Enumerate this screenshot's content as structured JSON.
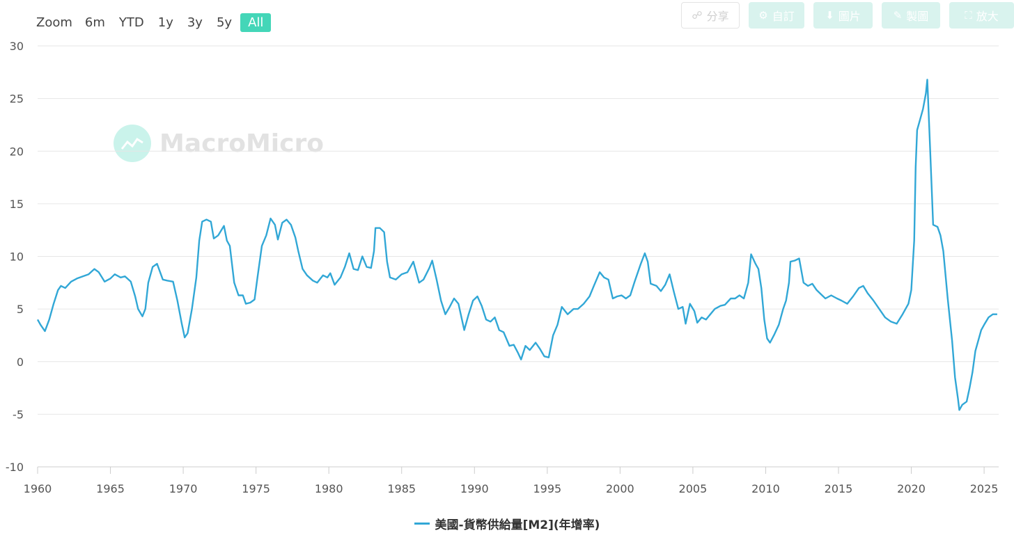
{
  "zoom": {
    "label": "Zoom",
    "buttons": [
      "6m",
      "YTD",
      "1y",
      "3y",
      "5y",
      "All"
    ],
    "active": "All"
  },
  "toolbar": {
    "share": "分享",
    "customize": "自訂",
    "image": "圖片",
    "draw": "製圖",
    "enlarge": "放大"
  },
  "watermark": "MacroMicro",
  "colors": {
    "series": "#31a7d6",
    "accent": "#44d6b8",
    "grid": "#e6e6e6"
  },
  "chart_data": {
    "type": "line",
    "x_ticks": [
      1960,
      1965,
      1970,
      1975,
      1980,
      1985,
      1990,
      1995,
      2000,
      2005,
      2010,
      2015,
      2020,
      2025
    ],
    "y_ticks": [
      30,
      25,
      20,
      15,
      10,
      5,
      0,
      -5,
      -10
    ],
    "xlim": [
      1960,
      2026
    ],
    "ylim": [
      -10,
      30
    ],
    "grid": true,
    "legend_position": "bottom-center",
    "series": [
      {
        "name": "美國-貨幣供給量[M2](年增率)",
        "points": [
          [
            1960.0,
            4.0
          ],
          [
            1960.2,
            3.5
          ],
          [
            1960.5,
            2.9
          ],
          [
            1960.8,
            4.0
          ],
          [
            1961.1,
            5.5
          ],
          [
            1961.4,
            6.8
          ],
          [
            1961.6,
            7.2
          ],
          [
            1961.9,
            7.0
          ],
          [
            1962.3,
            7.6
          ],
          [
            1962.7,
            7.9
          ],
          [
            1963.1,
            8.1
          ],
          [
            1963.5,
            8.3
          ],
          [
            1963.9,
            8.8
          ],
          [
            1964.2,
            8.5
          ],
          [
            1964.6,
            7.6
          ],
          [
            1965.0,
            7.9
          ],
          [
            1965.3,
            8.3
          ],
          [
            1965.7,
            8.0
          ],
          [
            1966.0,
            8.1
          ],
          [
            1966.4,
            7.6
          ],
          [
            1966.7,
            6.2
          ],
          [
            1966.9,
            5.0
          ],
          [
            1967.2,
            4.3
          ],
          [
            1967.4,
            5.0
          ],
          [
            1967.6,
            7.5
          ],
          [
            1967.9,
            9.0
          ],
          [
            1968.2,
            9.3
          ],
          [
            1968.6,
            7.8
          ],
          [
            1968.9,
            7.7
          ],
          [
            1969.3,
            7.6
          ],
          [
            1969.6,
            5.8
          ],
          [
            1969.9,
            3.6
          ],
          [
            1970.1,
            2.3
          ],
          [
            1970.3,
            2.7
          ],
          [
            1970.6,
            5.0
          ],
          [
            1970.9,
            8.0
          ],
          [
            1971.1,
            11.5
          ],
          [
            1971.3,
            13.3
          ],
          [
            1971.6,
            13.5
          ],
          [
            1971.9,
            13.3
          ],
          [
            1972.1,
            11.7
          ],
          [
            1972.4,
            12.0
          ],
          [
            1972.8,
            12.9
          ],
          [
            1973.0,
            11.5
          ],
          [
            1973.2,
            11.0
          ],
          [
            1973.5,
            7.5
          ],
          [
            1973.8,
            6.3
          ],
          [
            1974.1,
            6.3
          ],
          [
            1974.3,
            5.5
          ],
          [
            1974.6,
            5.6
          ],
          [
            1974.9,
            5.9
          ],
          [
            1975.1,
            8.0
          ],
          [
            1975.4,
            11.0
          ],
          [
            1975.7,
            12.0
          ],
          [
            1976.0,
            13.6
          ],
          [
            1976.3,
            13.0
          ],
          [
            1976.5,
            11.6
          ],
          [
            1976.8,
            13.2
          ],
          [
            1977.1,
            13.5
          ],
          [
            1977.4,
            13.0
          ],
          [
            1977.7,
            11.8
          ],
          [
            1977.9,
            10.5
          ],
          [
            1978.2,
            8.8
          ],
          [
            1978.5,
            8.2
          ],
          [
            1978.9,
            7.7
          ],
          [
            1979.2,
            7.5
          ],
          [
            1979.6,
            8.2
          ],
          [
            1979.9,
            8.0
          ],
          [
            1980.1,
            8.4
          ],
          [
            1980.4,
            7.3
          ],
          [
            1980.8,
            8.0
          ],
          [
            1981.1,
            9.0
          ],
          [
            1981.4,
            10.3
          ],
          [
            1981.7,
            8.8
          ],
          [
            1982.0,
            8.7
          ],
          [
            1982.3,
            10.0
          ],
          [
            1982.6,
            9.0
          ],
          [
            1982.9,
            8.9
          ],
          [
            1983.1,
            10.5
          ],
          [
            1983.2,
            12.7
          ],
          [
            1983.5,
            12.7
          ],
          [
            1983.8,
            12.3
          ],
          [
            1984.0,
            9.5
          ],
          [
            1984.2,
            8.0
          ],
          [
            1984.6,
            7.8
          ],
          [
            1985.0,
            8.3
          ],
          [
            1985.4,
            8.5
          ],
          [
            1985.8,
            9.5
          ],
          [
            1986.2,
            7.5
          ],
          [
            1986.5,
            7.8
          ],
          [
            1986.9,
            8.9
          ],
          [
            1987.1,
            9.6
          ],
          [
            1987.4,
            7.8
          ],
          [
            1987.7,
            5.8
          ],
          [
            1988.0,
            4.5
          ],
          [
            1988.3,
            5.2
          ],
          [
            1988.6,
            6.0
          ],
          [
            1988.9,
            5.5
          ],
          [
            1989.3,
            3.0
          ],
          [
            1989.6,
            4.5
          ],
          [
            1989.9,
            5.8
          ],
          [
            1990.2,
            6.2
          ],
          [
            1990.5,
            5.3
          ],
          [
            1990.8,
            4.0
          ],
          [
            1991.1,
            3.8
          ],
          [
            1991.4,
            4.2
          ],
          [
            1991.7,
            3.0
          ],
          [
            1992.0,
            2.8
          ],
          [
            1992.4,
            1.5
          ],
          [
            1992.7,
            1.6
          ],
          [
            1993.0,
            0.8
          ],
          [
            1993.2,
            0.2
          ],
          [
            1993.5,
            1.5
          ],
          [
            1993.8,
            1.1
          ],
          [
            1994.2,
            1.8
          ],
          [
            1994.5,
            1.2
          ],
          [
            1994.8,
            0.5
          ],
          [
            1995.1,
            0.4
          ],
          [
            1995.4,
            2.5
          ],
          [
            1995.7,
            3.5
          ],
          [
            1996.0,
            5.2
          ],
          [
            1996.4,
            4.5
          ],
          [
            1996.8,
            5.0
          ],
          [
            1997.1,
            5.0
          ],
          [
            1997.5,
            5.5
          ],
          [
            1997.9,
            6.2
          ],
          [
            1998.2,
            7.2
          ],
          [
            1998.6,
            8.5
          ],
          [
            1998.9,
            8.0
          ],
          [
            1999.2,
            7.8
          ],
          [
            1999.5,
            6.0
          ],
          [
            1999.8,
            6.2
          ],
          [
            2000.1,
            6.3
          ],
          [
            2000.4,
            6.0
          ],
          [
            2000.7,
            6.3
          ],
          [
            2001.0,
            7.6
          ],
          [
            2001.4,
            9.2
          ],
          [
            2001.7,
            10.3
          ],
          [
            2001.9,
            9.5
          ],
          [
            2002.1,
            7.4
          ],
          [
            2002.5,
            7.2
          ],
          [
            2002.8,
            6.7
          ],
          [
            2003.1,
            7.3
          ],
          [
            2003.4,
            8.3
          ],
          [
            2003.7,
            6.6
          ],
          [
            2004.0,
            5.0
          ],
          [
            2004.3,
            5.2
          ],
          [
            2004.5,
            3.6
          ],
          [
            2004.8,
            5.5
          ],
          [
            2005.1,
            4.8
          ],
          [
            2005.3,
            3.7
          ],
          [
            2005.6,
            4.2
          ],
          [
            2005.9,
            4.0
          ],
          [
            2006.2,
            4.5
          ],
          [
            2006.5,
            5.0
          ],
          [
            2006.9,
            5.3
          ],
          [
            2007.2,
            5.4
          ],
          [
            2007.6,
            6.0
          ],
          [
            2007.9,
            6.0
          ],
          [
            2008.2,
            6.3
          ],
          [
            2008.5,
            6.0
          ],
          [
            2008.8,
            7.5
          ],
          [
            2009.0,
            10.2
          ],
          [
            2009.3,
            9.3
          ],
          [
            2009.5,
            8.8
          ],
          [
            2009.7,
            7.0
          ],
          [
            2009.9,
            4.0
          ],
          [
            2010.1,
            2.2
          ],
          [
            2010.3,
            1.8
          ],
          [
            2010.6,
            2.6
          ],
          [
            2010.9,
            3.5
          ],
          [
            2011.2,
            5.0
          ],
          [
            2011.4,
            5.8
          ],
          [
            2011.6,
            7.5
          ],
          [
            2011.7,
            9.5
          ],
          [
            2012.0,
            9.6
          ],
          [
            2012.3,
            9.8
          ],
          [
            2012.6,
            7.5
          ],
          [
            2012.9,
            7.2
          ],
          [
            2013.2,
            7.4
          ],
          [
            2013.5,
            6.8
          ],
          [
            2013.8,
            6.4
          ],
          [
            2014.1,
            6.0
          ],
          [
            2014.5,
            6.3
          ],
          [
            2014.9,
            6.0
          ],
          [
            2015.2,
            5.8
          ],
          [
            2015.6,
            5.5
          ],
          [
            2016.0,
            6.2
          ],
          [
            2016.4,
            7.0
          ],
          [
            2016.7,
            7.2
          ],
          [
            2017.0,
            6.5
          ],
          [
            2017.4,
            5.8
          ],
          [
            2017.8,
            5.0
          ],
          [
            2018.2,
            4.2
          ],
          [
            2018.6,
            3.8
          ],
          [
            2019.0,
            3.6
          ],
          [
            2019.4,
            4.5
          ],
          [
            2019.8,
            5.5
          ],
          [
            2020.0,
            6.8
          ],
          [
            2020.2,
            11.5
          ],
          [
            2020.3,
            18.5
          ],
          [
            2020.4,
            22.0
          ],
          [
            2020.6,
            23.0
          ],
          [
            2020.8,
            24.0
          ],
          [
            2021.0,
            25.5
          ],
          [
            2021.1,
            26.8
          ],
          [
            2021.3,
            20.0
          ],
          [
            2021.5,
            13.0
          ],
          [
            2021.8,
            12.8
          ],
          [
            2022.0,
            12.0
          ],
          [
            2022.2,
            10.5
          ],
          [
            2022.5,
            6.0
          ],
          [
            2022.8,
            2.0
          ],
          [
            2023.0,
            -1.5
          ],
          [
            2023.2,
            -3.5
          ],
          [
            2023.3,
            -4.6
          ],
          [
            2023.5,
            -4.1
          ],
          [
            2023.8,
            -3.8
          ],
          [
            2024.0,
            -2.5
          ],
          [
            2024.2,
            -1.0
          ],
          [
            2024.4,
            1.0
          ],
          [
            2024.8,
            3.0
          ],
          [
            2025.0,
            3.5
          ],
          [
            2025.3,
            4.2
          ],
          [
            2025.6,
            4.5
          ],
          [
            2025.9,
            4.5
          ]
        ]
      }
    ]
  }
}
